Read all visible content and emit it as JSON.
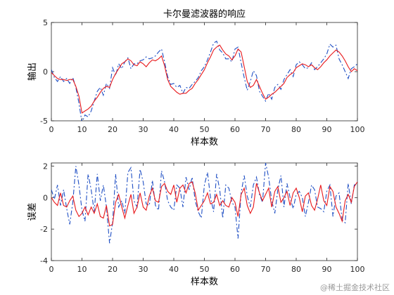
{
  "chart_data": [
    {
      "type": "line",
      "title": "卡尔曼滤波器的响应",
      "xlabel": "样本数",
      "ylabel": "输出",
      "xlim": [
        0,
        100
      ],
      "ylim": [
        -5,
        5
      ],
      "xticks": [
        0,
        10,
        20,
        30,
        40,
        50,
        60,
        70,
        80,
        90,
        100
      ],
      "yticks": [
        -5,
        0,
        5
      ],
      "grid": false,
      "legend": "none",
      "series": [
        {
          "color": "#e8191c",
          "style": "solid",
          "x": [
            0,
            1,
            2,
            3,
            4,
            5,
            6,
            7,
            8,
            9,
            10,
            11,
            12,
            13,
            14,
            15,
            16,
            17,
            18,
            19,
            20,
            21,
            22,
            23,
            24,
            25,
            26,
            27,
            28,
            29,
            30,
            31,
            32,
            33,
            34,
            35,
            36,
            37,
            38,
            39,
            40,
            41,
            42,
            43,
            44,
            45,
            46,
            47,
            48,
            49,
            50,
            51,
            52,
            53,
            54,
            55,
            56,
            57,
            58,
            59,
            60,
            61,
            62,
            63,
            64,
            65,
            66,
            67,
            68,
            69,
            70,
            71,
            72,
            73,
            74,
            75,
            76,
            77,
            78,
            79,
            80,
            81,
            82,
            83,
            84,
            85,
            86,
            87,
            88,
            89,
            90,
            91,
            92,
            93,
            94,
            95,
            96,
            97,
            98,
            99,
            100
          ],
          "values": [
            -0.1,
            -0.4,
            -0.7,
            -0.8,
            -0.8,
            -0.9,
            -0.8,
            -0.8,
            -1.5,
            -2.5,
            -4.2,
            -4.0,
            -3.8,
            -3.5,
            -3.0,
            -2.6,
            -2.1,
            -1.7,
            -1.5,
            -1.6,
            -0.8,
            -0.2,
            0.3,
            0.8,
            1.0,
            1.3,
            1.1,
            0.7,
            0.6,
            1.0,
            0.8,
            0.5,
            0.9,
            1.2,
            1.1,
            1.3,
            1.6,
            0.6,
            -0.8,
            -1.5,
            -1.8,
            -2.1,
            -2.3,
            -2.2,
            -2.2,
            -1.9,
            -1.7,
            -1.2,
            -0.8,
            -0.3,
            0.2,
            0.9,
            1.5,
            2.2,
            2.5,
            2.7,
            2.2,
            1.8,
            1.6,
            1.2,
            1.6,
            2.3,
            2.0,
            0.5,
            -1.0,
            -1.6,
            -1.4,
            -0.8,
            -1.5,
            -2.2,
            -2.8,
            -2.6,
            -2.3,
            -2.1,
            -1.8,
            -1.5,
            -1.2,
            -0.6,
            -0.3,
            -0.1,
            0.4,
            0.6,
            0.8,
            0.7,
            0.5,
            0.7,
            0.4,
            0.2,
            0.5,
            0.9,
            1.2,
            1.6,
            1.9,
            2.2,
            2.0,
            1.6,
            1.1,
            0.5,
            0.0,
            0.3,
            0.1
          ]
        },
        {
          "color": "#1f4fc4",
          "style": "dashdot",
          "x": [
            0,
            1,
            2,
            3,
            4,
            5,
            6,
            7,
            8,
            9,
            10,
            11,
            12,
            13,
            14,
            15,
            16,
            17,
            18,
            19,
            20,
            21,
            22,
            23,
            24,
            25,
            26,
            27,
            28,
            29,
            30,
            31,
            32,
            33,
            34,
            35,
            36,
            37,
            38,
            39,
            40,
            41,
            42,
            43,
            44,
            45,
            46,
            47,
            48,
            49,
            50,
            51,
            52,
            53,
            54,
            55,
            56,
            57,
            58,
            59,
            60,
            61,
            62,
            63,
            64,
            65,
            66,
            67,
            68,
            69,
            70,
            71,
            72,
            73,
            74,
            75,
            76,
            77,
            78,
            79,
            80,
            81,
            82,
            83,
            84,
            85,
            86,
            87,
            88,
            89,
            90,
            91,
            92,
            93,
            94,
            95,
            96,
            97,
            98,
            99,
            100
          ],
          "values": [
            0.2,
            -0.6,
            -1.0,
            -0.5,
            -1.0,
            -0.7,
            -1.2,
            -0.6,
            -1.6,
            -3.2,
            -5.2,
            -4.4,
            -4.6,
            -4.0,
            -3.0,
            -2.0,
            -1.6,
            -2.4,
            -1.2,
            -1.7,
            0.4,
            -0.4,
            0.8,
            0.3,
            1.0,
            1.4,
            0.3,
            0.8,
            0.8,
            1.1,
            1.2,
            1.5,
            1.3,
            1.4,
            1.6,
            2.0,
            2.3,
            1.0,
            -0.5,
            -1.3,
            -1.2,
            -1.6,
            -1.4,
            -2.2,
            -1.6,
            -1.7,
            -1.3,
            -1.0,
            -0.6,
            0.1,
            0.5,
            1.2,
            2.0,
            2.9,
            3.1,
            2.2,
            1.9,
            1.3,
            1.3,
            1.0,
            2.3,
            2.5,
            0.9,
            -0.6,
            -1.9,
            -1.0,
            0.1,
            -0.4,
            -2.0,
            -2.5,
            -3.0,
            -2.2,
            -2.8,
            -1.6,
            -1.3,
            -1.8,
            -0.8,
            -0.3,
            0.2,
            -0.5,
            0.7,
            1.0,
            0.7,
            0.3,
            0.4,
            0.9,
            0.2,
            0.5,
            0.9,
            1.3,
            1.8,
            2.8,
            2.5,
            2.7,
            1.3,
            0.7,
            0.0,
            -0.7,
            0.3,
            0.5,
            0.8
          ]
        }
      ]
    },
    {
      "type": "line",
      "title": "",
      "xlabel": "样本数",
      "ylabel": "误差",
      "xlim": [
        0,
        100
      ],
      "ylim": [
        -4,
        2.2
      ],
      "xticks": [
        0,
        10,
        20,
        30,
        40,
        50,
        60,
        70,
        80,
        90,
        100
      ],
      "yticks": [
        -4,
        -2,
        0,
        2
      ],
      "grid": false,
      "legend": "none",
      "series": [
        {
          "color": "#e8191c",
          "style": "solid",
          "x": [
            0,
            1,
            2,
            3,
            4,
            5,
            6,
            7,
            8,
            9,
            10,
            11,
            12,
            13,
            14,
            15,
            16,
            17,
            18,
            19,
            20,
            21,
            22,
            23,
            24,
            25,
            26,
            27,
            28,
            29,
            30,
            31,
            32,
            33,
            34,
            35,
            36,
            37,
            38,
            39,
            40,
            41,
            42,
            43,
            44,
            45,
            46,
            47,
            48,
            49,
            50,
            51,
            52,
            53,
            54,
            55,
            56,
            57,
            58,
            59,
            60,
            61,
            62,
            63,
            64,
            65,
            66,
            67,
            68,
            69,
            70,
            71,
            72,
            73,
            74,
            75,
            76,
            77,
            78,
            79,
            80,
            81,
            82,
            83,
            84,
            85,
            86,
            87,
            88,
            89,
            90,
            91,
            92,
            93,
            94,
            95,
            96,
            97,
            98,
            99,
            100
          ],
          "values": [
            0.0,
            -0.3,
            -0.5,
            0.3,
            -0.5,
            -0.6,
            -0.2,
            0.1,
            -0.8,
            -1.2,
            -1.0,
            -0.6,
            -1.1,
            -0.6,
            -1.0,
            -0.4,
            -1.2,
            -1.3,
            -0.5,
            -1.8,
            -1.7,
            -0.3,
            0.2,
            -0.6,
            -1.3,
            -0.5,
            0.2,
            -1.0,
            -0.6,
            0.3,
            -0.6,
            -0.8,
            0.1,
            0.6,
            -0.2,
            -0.3,
            0.7,
            0.9,
            0.4,
            0.2,
            0.8,
            -0.3,
            0.6,
            0.8,
            0.3,
            0.9,
            1.0,
            0.3,
            -0.8,
            -0.5,
            -0.2,
            0.3,
            -0.4,
            -0.3,
            0.2,
            -0.5,
            -0.2,
            -0.5,
            -0.6,
            0.0,
            -0.3,
            -1.2,
            0.2,
            0.6,
            -0.5,
            -1.0,
            -0.6,
            0.9,
            0.3,
            -0.2,
            0.2,
            0.6,
            -0.6,
            0.4,
            0.7,
            -0.3,
            0.0,
            0.4,
            -0.5,
            0.3,
            0.6,
            0.0,
            -0.9,
            0.1,
            0.3,
            -0.5,
            -0.8,
            -0.1,
            0.8,
            -0.2,
            -0.5,
            0.7,
            0.4,
            -0.6,
            -1.0,
            -1.5,
            -0.2,
            0.2,
            -0.3,
            0.7,
            1.0
          ]
        },
        {
          "color": "#1f4fc4",
          "style": "dashdot",
          "x": [
            0,
            1,
            2,
            3,
            4,
            5,
            6,
            7,
            8,
            9,
            10,
            11,
            12,
            13,
            14,
            15,
            16,
            17,
            18,
            19,
            20,
            21,
            22,
            23,
            24,
            25,
            26,
            27,
            28,
            29,
            30,
            31,
            32,
            33,
            34,
            35,
            36,
            37,
            38,
            39,
            40,
            41,
            42,
            43,
            44,
            45,
            46,
            47,
            48,
            49,
            50,
            51,
            52,
            53,
            54,
            55,
            56,
            57,
            58,
            59,
            60,
            61,
            62,
            63,
            64,
            65,
            66,
            67,
            68,
            69,
            70,
            71,
            72,
            73,
            74,
            75,
            76,
            77,
            78,
            79,
            80,
            81,
            82,
            83,
            84,
            85,
            86,
            87,
            88,
            89,
            90,
            91,
            92,
            93,
            94,
            95,
            96,
            97,
            98,
            99,
            100
          ],
          "values": [
            0.5,
            -0.1,
            0.8,
            -0.5,
            0.5,
            -0.7,
            -1.7,
            -0.3,
            2.0,
            0.8,
            -0.8,
            -1.5,
            1.5,
            0.5,
            -0.9,
            1.5,
            -0.2,
            0.8,
            -0.6,
            -2.9,
            -1.6,
            1.5,
            -0.6,
            -0.2,
            -1.0,
            1.6,
            1.9,
            -0.2,
            -0.6,
            1.8,
            1.0,
            -0.4,
            -0.5,
            1.1,
            -0.5,
            -0.8,
            1.7,
            1.0,
            -0.2,
            -0.6,
            -0.8,
            0.8,
            0.6,
            -0.6,
            1.3,
            0.5,
            1.3,
            -0.2,
            -0.9,
            -1.3,
            0.8,
            1.6,
            0.0,
            -0.9,
            1.5,
            0.5,
            -1.3,
            0.8,
            0.6,
            -0.3,
            -0.6,
            -2.6,
            0.3,
            1.4,
            0.1,
            -0.6,
            0.8,
            1.3,
            0.2,
            -0.3,
            2.2,
            1.3,
            -0.2,
            -1.0,
            0.5,
            1.4,
            -0.6,
            0.9,
            0.0,
            -0.7,
            0.2,
            0.4,
            0.0,
            -1.2,
            -0.3,
            0.8,
            0.5,
            -0.6,
            -0.7,
            -0.9,
            0.4,
            0.8,
            -1.2,
            0.1,
            0.3,
            -1.4,
            -1.6,
            0.9,
            -0.4,
            0.8,
            0.9
          ]
        }
      ]
    }
  ],
  "watermark": "@稀土掘金技术社区"
}
